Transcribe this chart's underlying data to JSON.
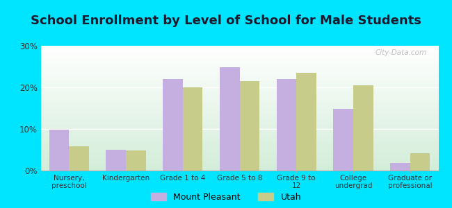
{
  "title": "School Enrollment by Level of School for Male Students",
  "categories": [
    "Nursery,\npreschool",
    "Kindergarten",
    "Grade 1 to 4",
    "Grade 5 to 8",
    "Grade 9 to\n12",
    "College\nundergrad",
    "Graduate or\nprofessional"
  ],
  "mount_pleasant": [
    9.8,
    5.0,
    22.0,
    24.8,
    22.0,
    14.8,
    1.8
  ],
  "utah": [
    5.8,
    4.8,
    20.0,
    21.5,
    23.5,
    20.5,
    4.2
  ],
  "color_mp_bars": "#c5aee0",
  "color_utah_bars": "#c8cc8a",
  "background_fig": "#00e5ff",
  "background_top": "#ffffff",
  "background_bottom": "#d4edda",
  "ylim": [
    0,
    30
  ],
  "yticks": [
    0,
    10,
    20,
    30
  ],
  "ytick_labels": [
    "0%",
    "10%",
    "20%",
    "30%"
  ],
  "legend_mp": "Mount Pleasant",
  "legend_utah": "Utah",
  "title_fontsize": 13,
  "watermark": "City-Data.com"
}
